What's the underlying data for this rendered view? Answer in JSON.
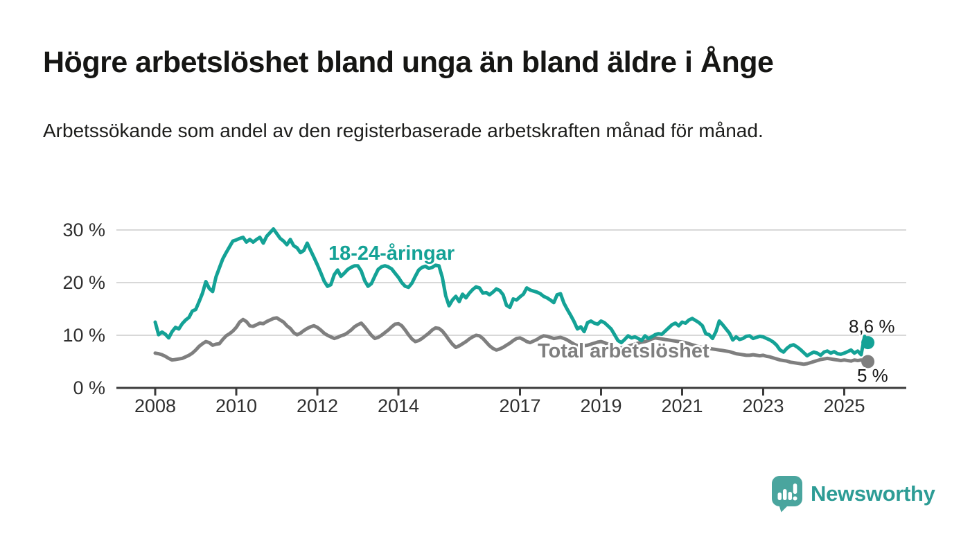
{
  "header": {
    "title": "Högre arbetslöshet bland unga än bland äldre i Ånge",
    "subtitle": "Arbetssökande som andel av den registerbaserade arbetskraften månad för månad."
  },
  "chart_data": {
    "type": "line",
    "x_unit": "month",
    "x_start": "2008-01",
    "x_end": "2025-08",
    "ylim": [
      0,
      32
    ],
    "grid": "horizontal",
    "gridline_color": "#d8d8d8",
    "axis_color": "#3b3b3b",
    "y_ticks": [
      {
        "value": 30,
        "label": "30 %"
      },
      {
        "value": 20,
        "label": "20 %"
      },
      {
        "value": 10,
        "label": "10 %"
      },
      {
        "value": 0,
        "label": "0 %"
      }
    ],
    "x_ticks": [
      {
        "year": 2008,
        "label": "2008"
      },
      {
        "year": 2010,
        "label": "2010"
      },
      {
        "year": 2012,
        "label": "2012"
      },
      {
        "year": 2014,
        "label": "2014"
      },
      {
        "year": 2017,
        "label": "2017"
      },
      {
        "year": 2019,
        "label": "2019"
      },
      {
        "year": 2021,
        "label": "2021"
      },
      {
        "year": 2023,
        "label": "2023"
      },
      {
        "year": 2025,
        "label": "2025"
      }
    ],
    "series": [
      {
        "name": "18-24-åringar",
        "color": "#14a296",
        "end_label": "8,6 %",
        "end_value": 8.6,
        "values": [
          12.5,
          10.1,
          10.6,
          10.2,
          9.5,
          10.7,
          11.5,
          11.2,
          12.2,
          12.9,
          13.4,
          14.6,
          14.9,
          16.4,
          18.0,
          20.2,
          18.9,
          18.3,
          21.1,
          22.8,
          24.5,
          25.7,
          26.8,
          27.9,
          28.1,
          28.4,
          28.6,
          27.7,
          28.2,
          27.7,
          28.2,
          28.6,
          27.5,
          28.8,
          29.5,
          30.2,
          29.3,
          28.4,
          27.9,
          27.2,
          28.2,
          27.0,
          26.6,
          25.7,
          26.1,
          27.5,
          26.1,
          24.8,
          23.4,
          21.9,
          20.3,
          19.3,
          19.6,
          21.5,
          22.4,
          21.2,
          21.8,
          22.5,
          22.9,
          23.2,
          23.2,
          22.2,
          20.4,
          19.3,
          19.8,
          21.2,
          22.5,
          23.0,
          23.2,
          23.0,
          22.6,
          21.8,
          21.0,
          20.0,
          19.3,
          19.1,
          19.9,
          21.2,
          22.4,
          22.9,
          23.1,
          22.7,
          22.9,
          23.3,
          23.2,
          21.0,
          17.5,
          15.6,
          16.7,
          17.4,
          16.4,
          17.8,
          17.1,
          18.0,
          18.7,
          19.2,
          19.0,
          18.0,
          18.1,
          17.7,
          18.2,
          18.8,
          18.5,
          17.7,
          15.7,
          15.3,
          16.9,
          16.7,
          17.3,
          17.8,
          19.0,
          18.6,
          18.4,
          18.2,
          17.9,
          17.4,
          17.1,
          16.7,
          16.2,
          17.7,
          17.9,
          16.1,
          14.9,
          13.8,
          12.6,
          11.2,
          11.6,
          10.7,
          12.4,
          12.7,
          12.3,
          12.1,
          12.7,
          12.4,
          11.8,
          11.2,
          10.1,
          9.0,
          8.6,
          9.2,
          9.9,
          9.5,
          9.7,
          9.4,
          9.0,
          9.9,
          9.4,
          9.7,
          10.1,
          10.3,
          10.2,
          10.8,
          11.4,
          12.0,
          12.3,
          11.8,
          12.5,
          12.3,
          12.9,
          13.2,
          12.8,
          12.4,
          11.8,
          10.3,
          10.1,
          9.4,
          10.7,
          12.7,
          12.0,
          11.2,
          10.4,
          9.1,
          9.7,
          9.2,
          9.4,
          9.8,
          9.9,
          9.4,
          9.6,
          9.8,
          9.7,
          9.4,
          9.1,
          8.7,
          8.1,
          7.2,
          6.8,
          7.5,
          8.0,
          8.2,
          7.8,
          7.3,
          6.7,
          6.1,
          6.5,
          6.8,
          6.6,
          6.2,
          6.8,
          7.0,
          6.6,
          6.9,
          6.5,
          6.4,
          6.6,
          6.9,
          7.2,
          6.6,
          7.0,
          6.3,
          9.8,
          8.6
        ]
      },
      {
        "name": "Total arbetslöshet",
        "color": "#7f7f7f",
        "end_label": "5 %",
        "end_value": 5.0,
        "values": [
          6.6,
          6.5,
          6.3,
          6.0,
          5.6,
          5.3,
          5.4,
          5.5,
          5.6,
          5.9,
          6.2,
          6.6,
          7.2,
          7.9,
          8.4,
          8.8,
          8.6,
          8.1,
          8.3,
          8.4,
          9.2,
          9.9,
          10.3,
          10.8,
          11.5,
          12.5,
          13.0,
          12.6,
          11.8,
          11.7,
          12.0,
          12.3,
          12.2,
          12.6,
          12.9,
          13.2,
          13.3,
          12.9,
          12.5,
          11.8,
          11.3,
          10.5,
          10.1,
          10.4,
          10.9,
          11.3,
          11.6,
          11.8,
          11.5,
          11.0,
          10.4,
          10.0,
          9.7,
          9.4,
          9.6,
          9.9,
          10.1,
          10.5,
          11.0,
          11.6,
          12.0,
          12.3,
          11.6,
          10.8,
          10.0,
          9.4,
          9.6,
          10.0,
          10.5,
          11.0,
          11.6,
          12.1,
          12.2,
          11.8,
          11.0,
          10.1,
          9.3,
          8.8,
          9.0,
          9.4,
          9.9,
          10.4,
          11.0,
          11.4,
          11.3,
          10.8,
          10.0,
          9.1,
          8.3,
          7.7,
          8.0,
          8.4,
          8.8,
          9.3,
          9.7,
          10.0,
          9.9,
          9.4,
          8.7,
          8.0,
          7.5,
          7.2,
          7.4,
          7.7,
          8.1,
          8.5,
          9.0,
          9.4,
          9.5,
          9.2,
          8.8,
          8.6,
          8.9,
          9.2,
          9.6,
          9.9,
          9.8,
          9.6,
          9.4,
          9.5,
          9.6,
          9.4,
          9.1,
          8.7,
          8.3,
          8.0,
          7.9,
          8.0,
          8.1,
          8.3,
          8.5,
          8.7,
          8.8,
          8.6,
          8.3,
          8.0,
          7.7,
          7.5,
          7.6,
          7.7,
          7.9,
          8.1,
          8.3,
          8.5,
          8.7,
          8.8,
          9.0,
          9.3,
          9.5,
          9.4,
          9.3,
          9.2,
          9.1,
          9.0,
          8.9,
          8.8,
          8.7,
          8.6,
          8.4,
          8.2,
          8.0,
          7.8,
          7.7,
          7.6,
          7.5,
          7.4,
          7.3,
          7.2,
          7.1,
          7.0,
          6.9,
          6.7,
          6.5,
          6.4,
          6.3,
          6.2,
          6.2,
          6.3,
          6.2,
          6.1,
          6.2,
          6.0,
          5.9,
          5.7,
          5.5,
          5.3,
          5.2,
          5.1,
          4.9,
          4.8,
          4.7,
          4.6,
          4.5,
          4.6,
          4.8,
          5.0,
          5.2,
          5.4,
          5.5,
          5.6,
          5.5,
          5.4,
          5.3,
          5.2,
          5.3,
          5.2,
          5.1,
          5.3,
          5.2,
          5.3,
          5.1,
          5.0
        ]
      }
    ]
  },
  "branding": {
    "logo_text": "Newsworthy",
    "brand_color": "#2d9c95",
    "icon_color": "#4aa59e",
    "icon": "bar-chart-speech-bubble-icon"
  }
}
